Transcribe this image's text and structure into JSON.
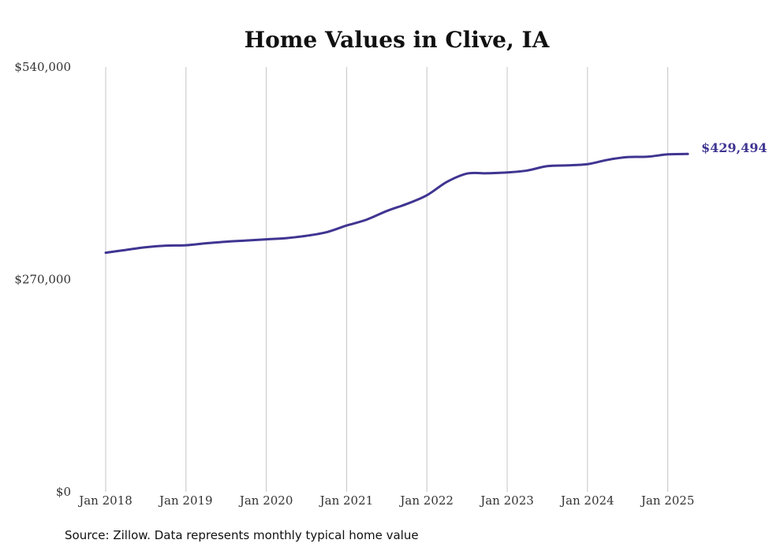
{
  "chart_data": {
    "type": "line",
    "title": "Home Values in Clive, IA",
    "xlabel": "",
    "ylabel": "",
    "x_ticks": [
      "Jan 2018",
      "Jan 2019",
      "Jan 2020",
      "Jan 2021",
      "Jan 2022",
      "Jan 2023",
      "Jan 2024",
      "Jan 2025"
    ],
    "y_ticks": [
      {
        "value": 0,
        "label": "$0"
      },
      {
        "value": 270000,
        "label": "$270,000"
      },
      {
        "value": 540000,
        "label": "$540,000"
      }
    ],
    "xlim": [
      "2018-01",
      "2025-04"
    ],
    "ylim": [
      0,
      540000
    ],
    "grid": "vertical",
    "end_label": "$429,494",
    "line_color": "#3f3591",
    "series": [
      {
        "points": [
          {
            "x": "2018-01",
            "y": 304000
          },
          {
            "x": "2018-04",
            "y": 307500
          },
          {
            "x": "2018-07",
            "y": 311000
          },
          {
            "x": "2018-10",
            "y": 313000
          },
          {
            "x": "2019-01",
            "y": 313500
          },
          {
            "x": "2019-04",
            "y": 316000
          },
          {
            "x": "2019-07",
            "y": 318000
          },
          {
            "x": "2019-10",
            "y": 319500
          },
          {
            "x": "2020-01",
            "y": 321000
          },
          {
            "x": "2020-04",
            "y": 322500
          },
          {
            "x": "2020-07",
            "y": 325500
          },
          {
            "x": "2020-10",
            "y": 330000
          },
          {
            "x": "2021-01",
            "y": 338500
          },
          {
            "x": "2021-04",
            "y": 346000
          },
          {
            "x": "2021-07",
            "y": 357000
          },
          {
            "x": "2021-10",
            "y": 366000
          },
          {
            "x": "2022-01",
            "y": 377000
          },
          {
            "x": "2022-04",
            "y": 394000
          },
          {
            "x": "2022-07",
            "y": 404500
          },
          {
            "x": "2022-10",
            "y": 405000
          },
          {
            "x": "2023-01",
            "y": 406000
          },
          {
            "x": "2023-04",
            "y": 408500
          },
          {
            "x": "2023-07",
            "y": 414000
          },
          {
            "x": "2023-10",
            "y": 415000
          },
          {
            "x": "2024-01",
            "y": 416500
          },
          {
            "x": "2024-04",
            "y": 422000
          },
          {
            "x": "2024-07",
            "y": 425500
          },
          {
            "x": "2024-10",
            "y": 426000
          },
          {
            "x": "2025-01",
            "y": 429000
          },
          {
            "x": "2025-04",
            "y": 429494
          }
        ]
      }
    ]
  },
  "source_note": "Source: Zillow. Data represents monthly typical home value"
}
